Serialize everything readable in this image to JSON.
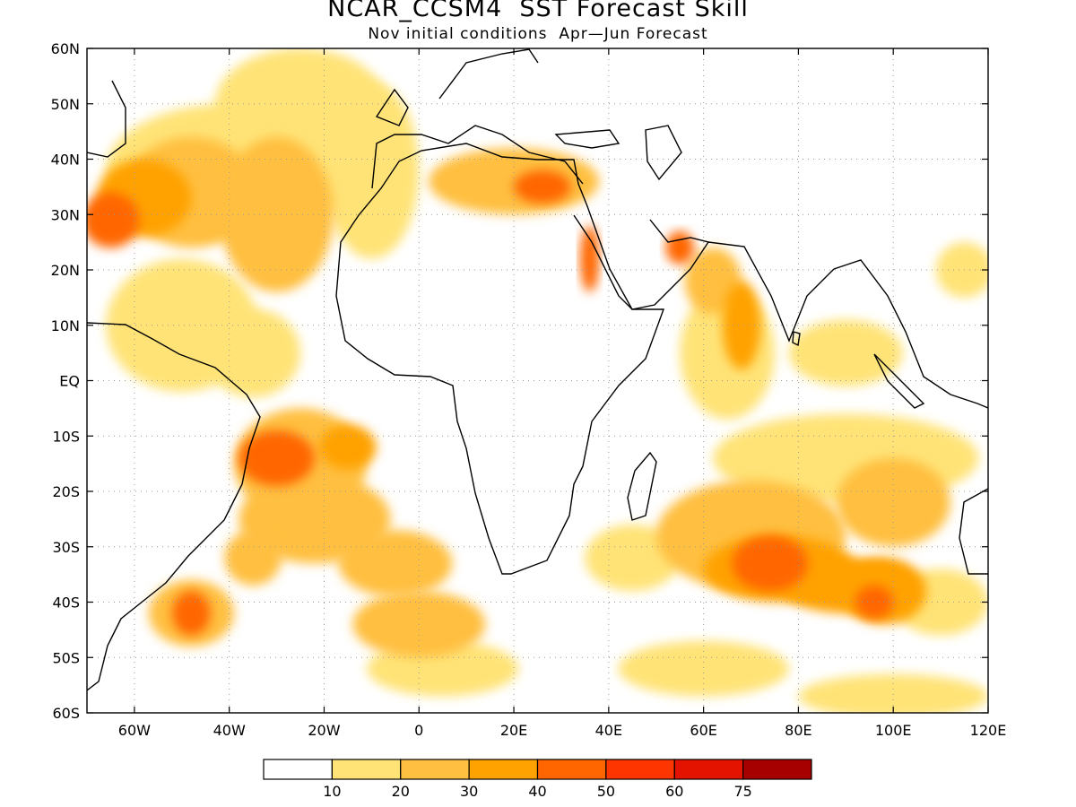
{
  "title": "NCAR_CCSM4  SST Forecast Skill",
  "subtitle": "Nov initial conditions  Apr—Jun Forecast",
  "map": {
    "lon_range": [
      -70,
      120
    ],
    "lat_range": [
      -60,
      60
    ],
    "grid": "dotted",
    "lat_labels": [
      "60N",
      "50N",
      "40N",
      "30N",
      "20N",
      "10N",
      "EQ",
      "10S",
      "20S",
      "30S",
      "40S",
      "50S",
      "60S"
    ],
    "lat_values": [
      60,
      50,
      40,
      30,
      20,
      10,
      0,
      -10,
      -20,
      -30,
      -40,
      -50,
      -60
    ],
    "lon_labels": [
      "60W",
      "40W",
      "20W",
      "0",
      "20E",
      "40E",
      "60E",
      "80E",
      "100E",
      "120E"
    ],
    "lon_values": [
      -60,
      -40,
      -20,
      0,
      20,
      40,
      60,
      80,
      100,
      120
    ],
    "skill_regions": [
      {
        "lon": -65,
        "lat": 29,
        "rx": 6,
        "ry": 5,
        "level": 4
      },
      {
        "lon": -58,
        "lat": 33,
        "rx": 10,
        "ry": 7,
        "level": 3
      },
      {
        "lon": -48,
        "lat": 34,
        "rx": 14,
        "ry": 10,
        "level": 2
      },
      {
        "lon": -40,
        "lat": 38,
        "rx": 26,
        "ry": 12,
        "level": 1
      },
      {
        "lon": -30,
        "lat": 30,
        "rx": 12,
        "ry": 14,
        "level": 2
      },
      {
        "lon": -25,
        "lat": 50,
        "rx": 18,
        "ry": 10,
        "level": 1
      },
      {
        "lon": -10,
        "lat": 38,
        "rx": 10,
        "ry": 16,
        "level": 1
      },
      {
        "lon": -50,
        "lat": 10,
        "rx": 16,
        "ry": 12,
        "level": 1
      },
      {
        "lon": -35,
        "lat": 5,
        "rx": 10,
        "ry": 8,
        "level": 1
      },
      {
        "lon": -25,
        "lat": -15,
        "rx": 14,
        "ry": 10,
        "level": 2
      },
      {
        "lon": -30,
        "lat": -14,
        "rx": 8,
        "ry": 5,
        "level": 4
      },
      {
        "lon": -15,
        "lat": -12,
        "rx": 6,
        "ry": 4,
        "level": 3
      },
      {
        "lon": -22,
        "lat": -25,
        "rx": 16,
        "ry": 8,
        "level": 2
      },
      {
        "lon": -5,
        "lat": -33,
        "rx": 12,
        "ry": 6,
        "level": 2
      },
      {
        "lon": -35,
        "lat": -32,
        "rx": 6,
        "ry": 5,
        "level": 2
      },
      {
        "lon": -48,
        "lat": -42,
        "rx": 9,
        "ry": 6,
        "level": 2
      },
      {
        "lon": -48,
        "lat": -42,
        "rx": 4,
        "ry": 4,
        "level": 4
      },
      {
        "lon": 0,
        "lat": -44,
        "rx": 14,
        "ry": 6,
        "level": 2
      },
      {
        "lon": 5,
        "lat": -52,
        "rx": 16,
        "ry": 5,
        "level": 1
      },
      {
        "lon": 20,
        "lat": 36,
        "rx": 18,
        "ry": 6,
        "level": 2
      },
      {
        "lon": 26,
        "lat": 35,
        "rx": 6,
        "ry": 3,
        "level": 4
      },
      {
        "lon": 36,
        "lat": 22,
        "rx": 2,
        "ry": 6,
        "level": 4
      },
      {
        "lon": 55,
        "lat": 24,
        "rx": 3,
        "ry": 3,
        "level": 4
      },
      {
        "lon": 65,
        "lat": 5,
        "rx": 10,
        "ry": 12,
        "level": 1
      },
      {
        "lon": 68,
        "lat": 10,
        "rx": 4,
        "ry": 8,
        "level": 3
      },
      {
        "lon": 62,
        "lat": 18,
        "rx": 6,
        "ry": 6,
        "level": 2
      },
      {
        "lon": 90,
        "lat": 5,
        "rx": 12,
        "ry": 6,
        "level": 1
      },
      {
        "lon": 90,
        "lat": -14,
        "rx": 28,
        "ry": 8,
        "level": 1
      },
      {
        "lon": 100,
        "lat": -22,
        "rx": 12,
        "ry": 8,
        "level": 2
      },
      {
        "lon": 70,
        "lat": -28,
        "rx": 20,
        "ry": 10,
        "level": 2
      },
      {
        "lon": 76,
        "lat": -34,
        "rx": 16,
        "ry": 6,
        "level": 3
      },
      {
        "lon": 74,
        "lat": -33,
        "rx": 8,
        "ry": 5,
        "level": 4
      },
      {
        "lon": 90,
        "lat": -37,
        "rx": 14,
        "ry": 5,
        "level": 3
      },
      {
        "lon": 98,
        "lat": -38,
        "rx": 9,
        "ry": 6,
        "level": 3
      },
      {
        "lon": 96,
        "lat": -40,
        "rx": 4,
        "ry": 3,
        "level": 4
      },
      {
        "lon": 110,
        "lat": -40,
        "rx": 10,
        "ry": 6,
        "level": 1
      },
      {
        "lon": 45,
        "lat": -32,
        "rx": 10,
        "ry": 6,
        "level": 1
      },
      {
        "lon": 60,
        "lat": -52,
        "rx": 18,
        "ry": 5,
        "level": 1
      },
      {
        "lon": 100,
        "lat": -57,
        "rx": 20,
        "ry": 4,
        "level": 1
      },
      {
        "lon": 115,
        "lat": 20,
        "rx": 6,
        "ry": 5,
        "level": 1
      }
    ]
  },
  "colorbar": {
    "labels": [
      "10",
      "20",
      "30",
      "40",
      "50",
      "60",
      "75"
    ],
    "colors": [
      "#ffffff",
      "#ffe377",
      "#ffbf40",
      "#ffa200",
      "#ff6600",
      "#ff3500",
      "#e31300",
      "#a60000"
    ]
  },
  "colors": {
    "land_outline": "#000000",
    "grid": "#999999"
  }
}
